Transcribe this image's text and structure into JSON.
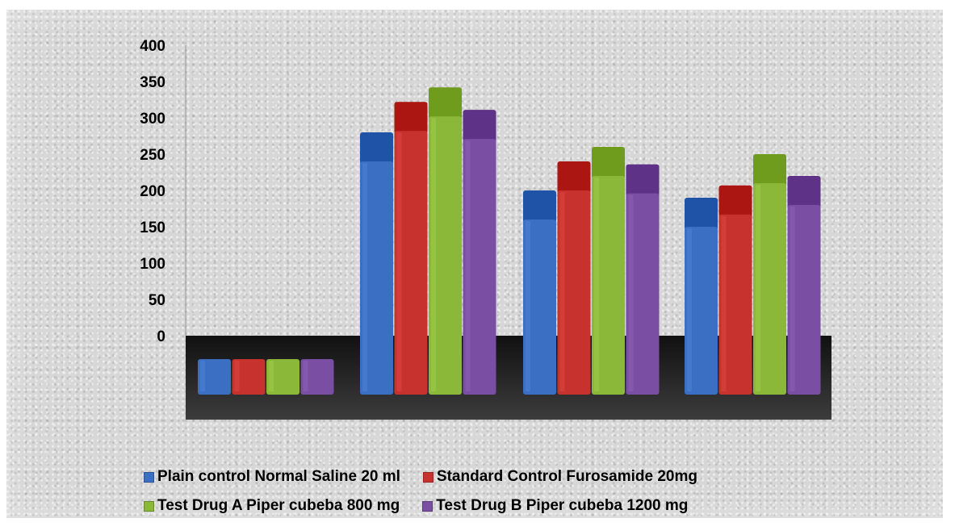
{
  "chart_data": {
    "type": "bar",
    "categories": [
      "",
      "",
      "",
      ""
    ],
    "ylim": [
      0,
      400
    ],
    "yticks": [
      0,
      50,
      100,
      150,
      200,
      250,
      300,
      350,
      400
    ],
    "legend_position": "bottom",
    "grid": false,
    "series": [
      {
        "name": "Plain control Normal Saline 20 ml",
        "color": "#3a6fc4",
        "values": [
          0,
          280,
          200,
          190
        ]
      },
      {
        "name": "Standard Control Furosamide 20mg",
        "color": "#c8322e",
        "values": [
          0,
          322,
          240,
          207
        ]
      },
      {
        "name": "Test Drug  A Piper cubeba 800 mg",
        "color": "#8cb83a",
        "values": [
          0,
          342,
          260,
          250
        ]
      },
      {
        "name": "Test Drug B Piper cubeba 1200 mg",
        "color": "#7a4ea3",
        "values": [
          0,
          311,
          236,
          220
        ]
      }
    ]
  }
}
